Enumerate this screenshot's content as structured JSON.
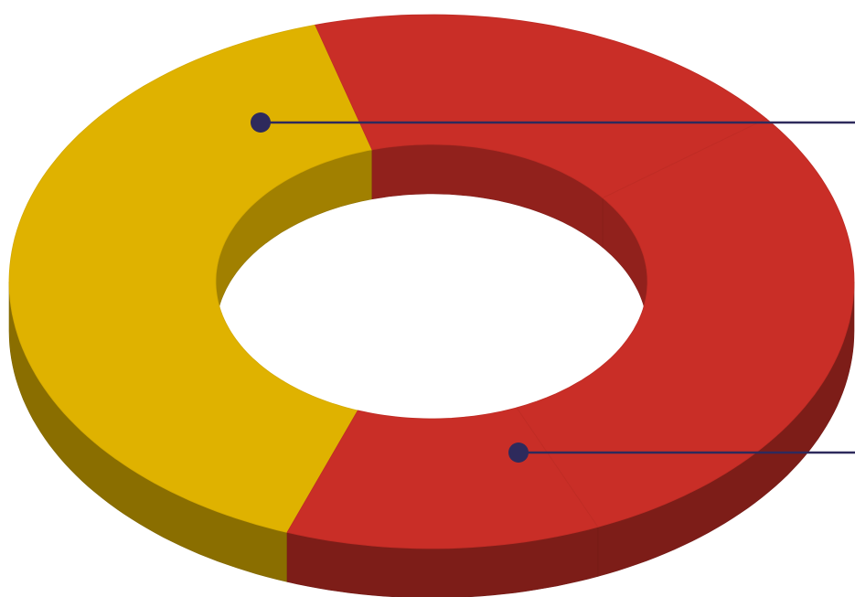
{
  "chart_data": {
    "type": "pie",
    "donut": true,
    "values": [
      40,
      12,
      29,
      19
    ],
    "colors": [
      "#dfb200",
      "#c92e27",
      "#c92e27",
      "#c92e27"
    ]
  }
}
